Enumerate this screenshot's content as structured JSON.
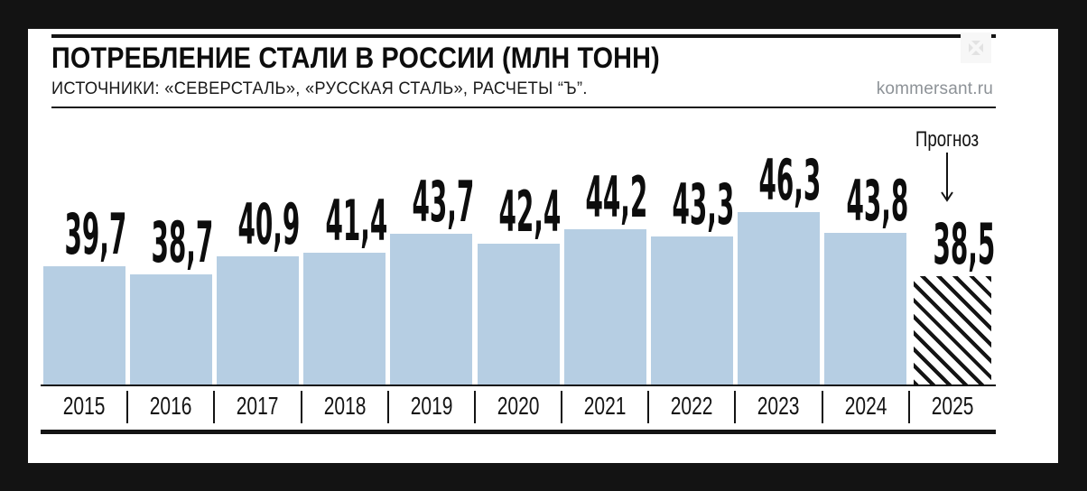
{
  "page": {
    "background_color": "#131313",
    "card_color": "#ffffff"
  },
  "header": {
    "title": "ПОТРЕБЛЕНИЕ СТАЛИ В РОССИИ (МЛН ТОНН)",
    "source_line": "ИСТОЧНИКИ: «СЕВЕРСТАЛЬ», «РУССКАЯ СТАЛЬ», РАСЧЕТЫ “Ъ”.",
    "site": "kommersant.ru"
  },
  "chart_data": {
    "type": "bar",
    "title": "ПОТРЕБЛЕНИЕ СТАЛИ В РОССИИ (МЛН ТОНН)",
    "unit": "млн тонн",
    "categories": [
      "2015",
      "2016",
      "2017",
      "2018",
      "2019",
      "2020",
      "2021",
      "2022",
      "2023",
      "2024",
      "2025"
    ],
    "values": [
      39.7,
      38.7,
      40.9,
      41.4,
      43.7,
      42.4,
      44.2,
      43.3,
      46.3,
      43.8,
      38.5
    ],
    "value_labels": [
      "39,7",
      "38,7",
      "40,9",
      "41,4",
      "43,7",
      "42,4",
      "44,2",
      "43,3",
      "46,3",
      "43,8",
      "38,5"
    ],
    "forecast": {
      "label": "Прогноз",
      "category": "2025",
      "value": 38.5,
      "index": 10
    },
    "bar_color": "#b6cee3",
    "hatch_pattern_color": "#141414",
    "axis_color": "#141414",
    "gridlines": "off",
    "legend": "none",
    "data_labels": "above-bars",
    "truncated_axis": true
  }
}
